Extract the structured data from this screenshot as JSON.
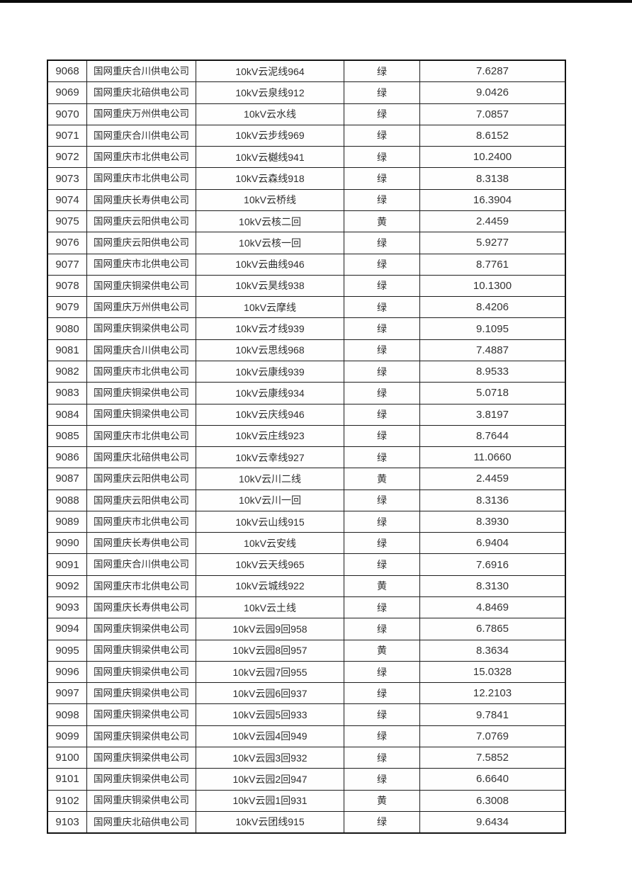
{
  "page": {
    "background_color": "#ffffff",
    "top_edge_color": "#0a0a0a",
    "table_border_color": "#141414",
    "text_color": "#2e2e2e"
  },
  "table": {
    "column_keys": [
      "id",
      "company",
      "line",
      "status",
      "value"
    ],
    "rows": [
      [
        "9068",
        "国网重庆合川供电公司",
        "10kV云泥线964",
        "绿",
        "7.6287"
      ],
      [
        "9069",
        "国网重庆北碚供电公司",
        "10kV云泉线912",
        "绿",
        "9.0426"
      ],
      [
        "9070",
        "国网重庆万州供电公司",
        "10kV云水线",
        "绿",
        "7.0857"
      ],
      [
        "9071",
        "国网重庆合川供电公司",
        "10kV云步线969",
        "绿",
        "8.6152"
      ],
      [
        "9072",
        "国网重庆市北供电公司",
        "10kV云樾线941",
        "绿",
        "10.2400"
      ],
      [
        "9073",
        "国网重庆市北供电公司",
        "10kV云森线918",
        "绿",
        "8.3138"
      ],
      [
        "9074",
        "国网重庆长寿供电公司",
        "10kV云桥线",
        "绿",
        "16.3904"
      ],
      [
        "9075",
        "国网重庆云阳供电公司",
        "10kV云核二回",
        "黄",
        "2.4459"
      ],
      [
        "9076",
        "国网重庆云阳供电公司",
        "10kV云核一回",
        "绿",
        "5.9277"
      ],
      [
        "9077",
        "国网重庆市北供电公司",
        "10kV云曲线946",
        "绿",
        "8.7761"
      ],
      [
        "9078",
        "国网重庆铜梁供电公司",
        "10kV云昊线938",
        "绿",
        "10.1300"
      ],
      [
        "9079",
        "国网重庆万州供电公司",
        "10kV云摩线",
        "绿",
        "8.4206"
      ],
      [
        "9080",
        "国网重庆铜梁供电公司",
        "10kV云才线939",
        "绿",
        "9.1095"
      ],
      [
        "9081",
        "国网重庆合川供电公司",
        "10kV云思线968",
        "绿",
        "7.4887"
      ],
      [
        "9082",
        "国网重庆市北供电公司",
        "10kV云康线939",
        "绿",
        "8.9533"
      ],
      [
        "9083",
        "国网重庆铜梁供电公司",
        "10kV云康线934",
        "绿",
        "5.0718"
      ],
      [
        "9084",
        "国网重庆铜梁供电公司",
        "10kV云庆线946",
        "绿",
        "3.8197"
      ],
      [
        "9085",
        "国网重庆市北供电公司",
        "10kV云庄线923",
        "绿",
        "8.7644"
      ],
      [
        "9086",
        "国网重庆北碚供电公司",
        "10kV云幸线927",
        "绿",
        "11.0660"
      ],
      [
        "9087",
        "国网重庆云阳供电公司",
        "10kV云川二线",
        "黄",
        "2.4459"
      ],
      [
        "9088",
        "国网重庆云阳供电公司",
        "10kV云川一回",
        "绿",
        "8.3136"
      ],
      [
        "9089",
        "国网重庆市北供电公司",
        "10kV云山线915",
        "绿",
        "8.3930"
      ],
      [
        "9090",
        "国网重庆长寿供电公司",
        "10kV云安线",
        "绿",
        "6.9404"
      ],
      [
        "9091",
        "国网重庆合川供电公司",
        "10kV云天线965",
        "绿",
        "7.6916"
      ],
      [
        "9092",
        "国网重庆市北供电公司",
        "10kV云城线922",
        "黄",
        "8.3130"
      ],
      [
        "9093",
        "国网重庆长寿供电公司",
        "10kV云土线",
        "绿",
        "4.8469"
      ],
      [
        "9094",
        "国网重庆铜梁供电公司",
        "10kV云园9回958",
        "绿",
        "6.7865"
      ],
      [
        "9095",
        "国网重庆铜梁供电公司",
        "10kV云园8回957",
        "黄",
        "8.3634"
      ],
      [
        "9096",
        "国网重庆铜梁供电公司",
        "10kV云园7回955",
        "绿",
        "15.0328"
      ],
      [
        "9097",
        "国网重庆铜梁供电公司",
        "10kV云园6回937",
        "绿",
        "12.2103"
      ],
      [
        "9098",
        "国网重庆铜梁供电公司",
        "10kV云园5回933",
        "绿",
        "9.7841"
      ],
      [
        "9099",
        "国网重庆铜梁供电公司",
        "10kV云园4回949",
        "绿",
        "7.0769"
      ],
      [
        "9100",
        "国网重庆铜梁供电公司",
        "10kV云园3回932",
        "绿",
        "7.5852"
      ],
      [
        "9101",
        "国网重庆铜梁供电公司",
        "10kV云园2回947",
        "绿",
        "6.6640"
      ],
      [
        "9102",
        "国网重庆铜梁供电公司",
        "10kV云园1回931",
        "黄",
        "6.3008"
      ],
      [
        "9103",
        "国网重庆北碚供电公司",
        "10kV云团线915",
        "绿",
        "9.6434"
      ]
    ]
  }
}
